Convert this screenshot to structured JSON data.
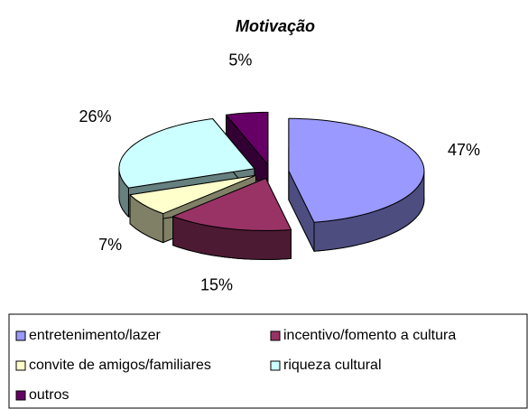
{
  "chart_data": {
    "type": "pie3d",
    "title": "Motivação",
    "categories": [
      "entretenimento/lazer",
      "incentivo/fomento a cultura",
      "convite de amigos/familiares",
      "riqueza cultural",
      "outros"
    ],
    "values": [
      47,
      15,
      7,
      26,
      5
    ],
    "value_labels": [
      "47%",
      "15%",
      "7%",
      "26%",
      "5%"
    ],
    "colors": [
      "#9999ff",
      "#993366",
      "#ffffcc",
      "#ccffff",
      "#660066"
    ],
    "legend": "bottom"
  }
}
